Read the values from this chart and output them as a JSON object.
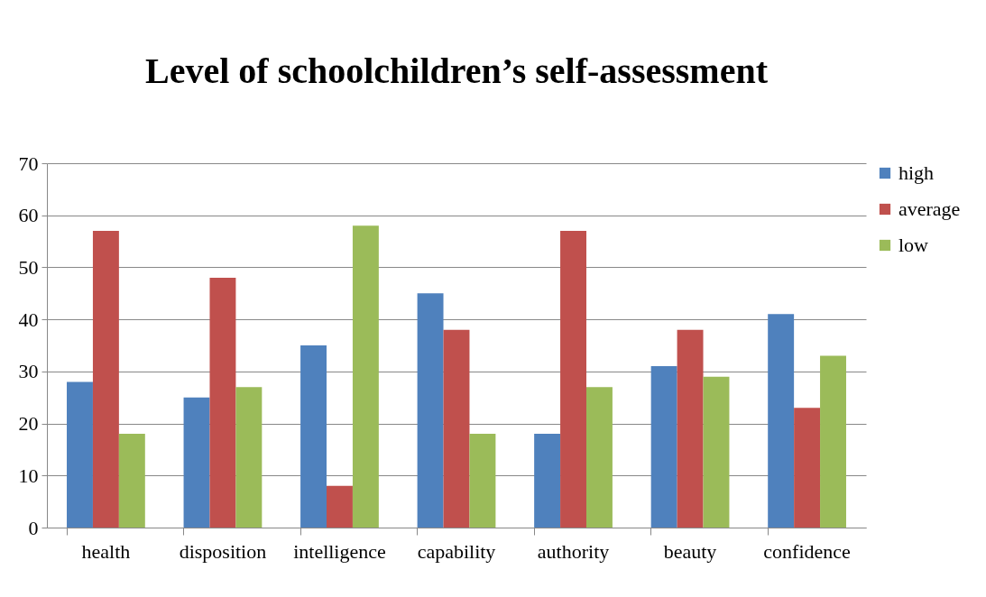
{
  "chart_data": {
    "type": "bar",
    "title": "Level of schoolchildren’s self-assessment",
    "categories": [
      "health",
      "disposition",
      "intelligence",
      "capability",
      "authority",
      "beauty",
      "confidence"
    ],
    "series": [
      {
        "name": "high",
        "color": "#4f81bd",
        "values": [
          28,
          25,
          35,
          45,
          18,
          31,
          41
        ]
      },
      {
        "name": "average",
        "color": "#c0504d",
        "values": [
          57,
          48,
          8,
          38,
          57,
          38,
          23
        ]
      },
      {
        "name": "low",
        "color": "#9bbb59",
        "values": [
          18,
          27,
          58,
          18,
          27,
          29,
          33
        ]
      }
    ],
    "ylim": [
      0,
      70
    ],
    "yticks": [
      0,
      10,
      20,
      30,
      40,
      50,
      60,
      70
    ],
    "grid": "y",
    "legend": "right"
  }
}
